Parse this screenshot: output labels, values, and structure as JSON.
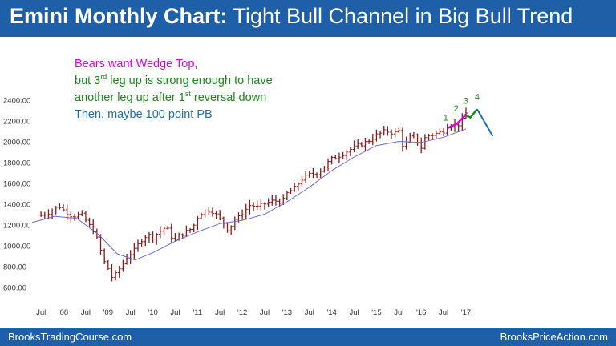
{
  "header": {
    "title_bold": "Emini Monthly Chart:",
    "title_rest": " Tight Bull Channel in Big Bull Trend"
  },
  "annotations": {
    "line1": "Bears want Wedge Top,",
    "line2_a": "but 3",
    "line2_sup": "rd",
    "line2_b": " leg up is strong enough to have",
    "line3_a": "another leg up after 1",
    "line3_sup": "st",
    "line3_b": " reversal down",
    "line4": "Then, maybe 100 point PB"
  },
  "footer": {
    "left": "BrooksTradingCourse.com",
    "right": "BrooksPriceAction.com"
  },
  "colors": {
    "header_bg": "#1f5fa8",
    "bars": "#8b1a1a",
    "moving_average": "#6b6bd6",
    "wedge_line": "#e000e0",
    "green": "#1a8a1a",
    "blue": "#1f6fb0"
  },
  "chart_data": {
    "type": "ohlc",
    "timeframe": "monthly",
    "y_ticks": [
      "2400.00",
      "2200.00",
      "2000.00",
      "1800.00",
      "1600.00",
      "1400.00",
      "1200.00",
      "1000.00",
      "800.00",
      "600.00"
    ],
    "x_ticks": [
      "Jul",
      "'08",
      "Jul",
      "'09",
      "Jul",
      "'10",
      "Jul",
      "'11",
      "Jul",
      "'12",
      "Jul",
      "'13",
      "Jul",
      "'14",
      "Jul",
      "'15",
      "Jul",
      "'16",
      "Jul",
      "'17"
    ],
    "ylim": [
      450,
      2450
    ],
    "xlim": [
      2007.3,
      2017.7
    ],
    "close_series": [
      [
        2007.5,
        1290
      ],
      [
        2007.7,
        1320
      ],
      [
        2007.9,
        1380
      ],
      [
        2008.0,
        1340
      ],
      [
        2008.2,
        1280
      ],
      [
        2008.4,
        1300
      ],
      [
        2008.6,
        1180
      ],
      [
        2008.7,
        1130
      ],
      [
        2008.8,
        1000
      ],
      [
        2008.9,
        850
      ],
      [
        2009.0,
        780
      ],
      [
        2009.1,
        680
      ],
      [
        2009.2,
        740
      ],
      [
        2009.3,
        810
      ],
      [
        2009.4,
        880
      ],
      [
        2009.5,
        920
      ],
      [
        2009.6,
        960
      ],
      [
        2009.7,
        1030
      ],
      [
        2009.8,
        1080
      ],
      [
        2009.9,
        1100
      ],
      [
        2010.0,
        1080
      ],
      [
        2010.2,
        1150
      ],
      [
        2010.3,
        1180
      ],
      [
        2010.4,
        1090
      ],
      [
        2010.5,
        1050
      ],
      [
        2010.6,
        1100
      ],
      [
        2010.8,
        1140
      ],
      [
        2010.9,
        1180
      ],
      [
        2011.0,
        1270
      ],
      [
        2011.1,
        1320
      ],
      [
        2011.3,
        1340
      ],
      [
        2011.4,
        1300
      ],
      [
        2011.6,
        1210
      ],
      [
        2011.7,
        1130
      ],
      [
        2011.8,
        1250
      ],
      [
        2011.9,
        1260
      ],
      [
        2012.0,
        1310
      ],
      [
        2012.2,
        1400
      ],
      [
        2012.3,
        1360
      ],
      [
        2012.5,
        1400
      ],
      [
        2012.7,
        1430
      ],
      [
        2012.9,
        1420
      ],
      [
        2013.0,
        1500
      ],
      [
        2013.2,
        1560
      ],
      [
        2013.3,
        1630
      ],
      [
        2013.5,
        1680
      ],
      [
        2013.7,
        1700
      ],
      [
        2013.9,
        1790
      ],
      [
        2014.0,
        1830
      ],
      [
        2014.2,
        1870
      ],
      [
        2014.4,
        1920
      ],
      [
        2014.6,
        1960
      ],
      [
        2014.8,
        2000
      ],
      [
        2015.0,
        2060
      ],
      [
        2015.2,
        2100
      ],
      [
        2015.4,
        2080
      ],
      [
        2015.5,
        2100
      ],
      [
        2015.6,
        1940
      ],
      [
        2015.8,
        2070
      ],
      [
        2016.0,
        1940
      ],
      [
        2016.1,
        2050
      ],
      [
        2016.3,
        2070
      ],
      [
        2016.5,
        2100
      ],
      [
        2016.6,
        2160
      ],
      [
        2016.8,
        2150
      ],
      [
        2016.9,
        2190
      ],
      [
        2017.0,
        2270
      ]
    ],
    "moving_average": [
      [
        2007.3,
        1220
      ],
      [
        2007.8,
        1280
      ],
      [
        2008.3,
        1260
      ],
      [
        2008.8,
        1100
      ],
      [
        2009.2,
        920
      ],
      [
        2009.6,
        860
      ],
      [
        2010.0,
        930
      ],
      [
        2010.5,
        1040
      ],
      [
        2011.0,
        1130
      ],
      [
        2011.5,
        1210
      ],
      [
        2012.0,
        1240
      ],
      [
        2012.5,
        1300
      ],
      [
        2013.0,
        1420
      ],
      [
        2013.5,
        1560
      ],
      [
        2014.0,
        1720
      ],
      [
        2014.5,
        1850
      ],
      [
        2015.0,
        1960
      ],
      [
        2015.5,
        2000
      ],
      [
        2016.0,
        1990
      ],
      [
        2016.5,
        2040
      ],
      [
        2017.0,
        2120
      ]
    ],
    "wedge_leg_labels": [
      "1",
      "2",
      "3",
      "4"
    ],
    "wedge_points": [
      [
        2016.6,
        2130
      ],
      [
        2016.8,
        2170
      ],
      [
        2017.0,
        2260
      ]
    ],
    "projection": [
      [
        2017.0,
        2250
      ],
      [
        2017.1,
        2230
      ],
      [
        2017.25,
        2310
      ],
      [
        2017.6,
        2050
      ]
    ]
  }
}
